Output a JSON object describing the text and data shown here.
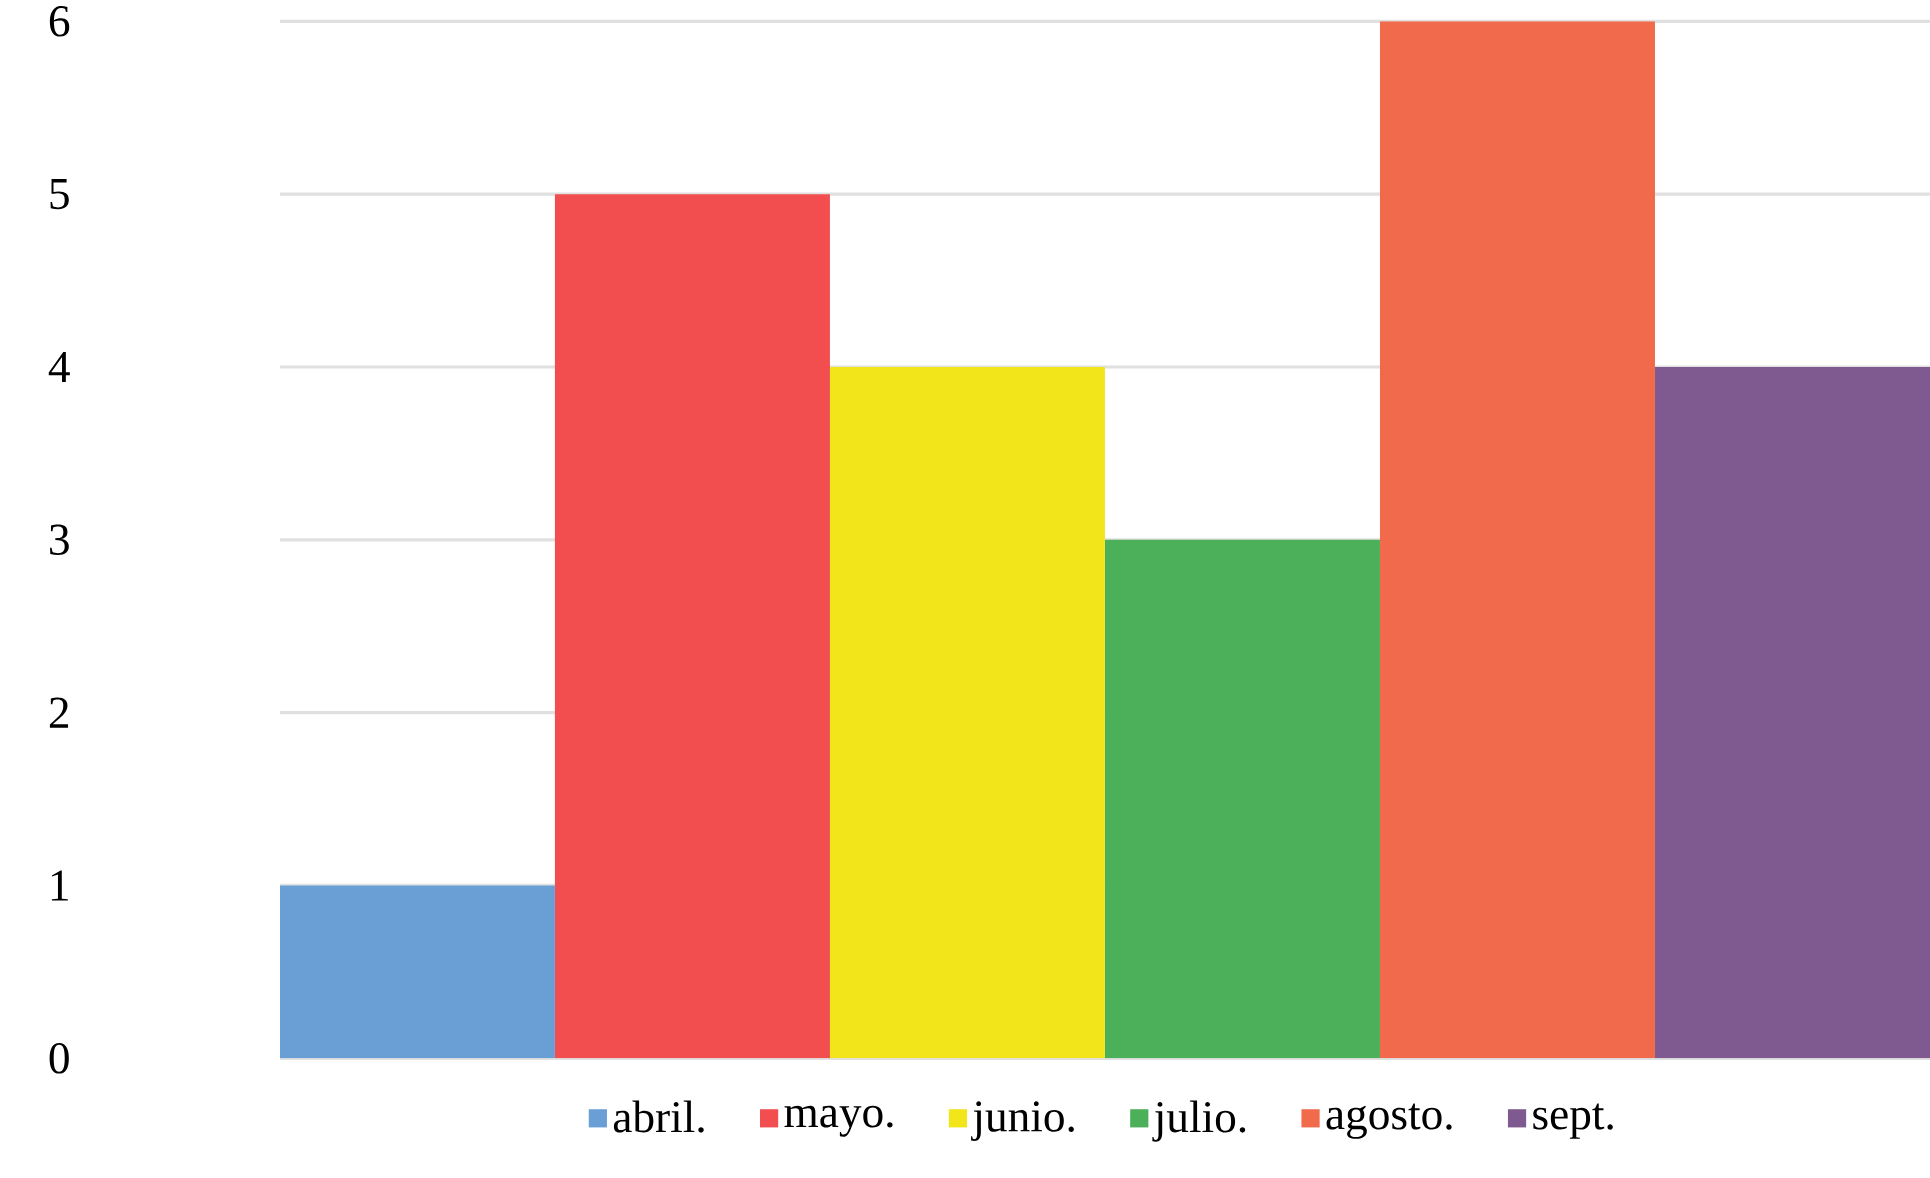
{
  "chart_data": {
    "type": "bar",
    "stacked": true,
    "categories": [
      null,
      null,
      null,
      null,
      null,
      null
    ],
    "series": [
      {
        "name": "abril.",
        "color": "#6a9fd6",
        "values": [
          1,
          0,
          0,
          0,
          0,
          0
        ]
      },
      {
        "name": "mayo.",
        "color": "#f24e50",
        "values": [
          0,
          5,
          0,
          0,
          0,
          0
        ]
      },
      {
        "name": "junio.",
        "color": "#f2e51a",
        "values": [
          0,
          0,
          4,
          0,
          0,
          0
        ]
      },
      {
        "name": "julio.",
        "color": "#4caf5a",
        "values": [
          0,
          0,
          0,
          3,
          0,
          0
        ]
      },
      {
        "name": "agosto.",
        "color": "#f26a4c",
        "values": [
          0,
          0,
          0,
          0,
          6,
          0
        ]
      },
      {
        "name": "sept.",
        "color": "#7e5a91",
        "values": [
          0,
          0,
          0,
          0,
          0,
          4
        ]
      }
    ],
    "ylim": [
      0,
      6
    ],
    "yticks": [
      0,
      1,
      2,
      3,
      4,
      5,
      6
    ],
    "grid": "y",
    "legend": "bottom"
  }
}
